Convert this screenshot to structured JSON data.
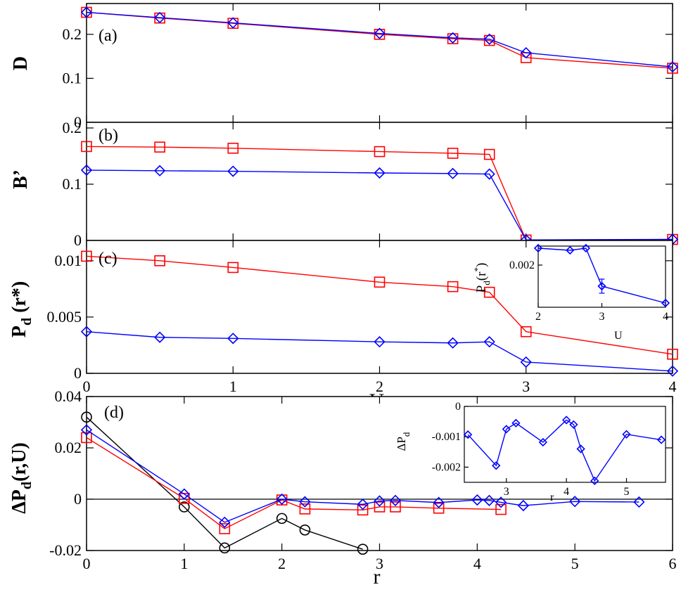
{
  "chart_data": [
    {
      "type": "line",
      "panel_label": "(a)",
      "xlabel": "",
      "ylabel": "D",
      "xlim": [
        0,
        4
      ],
      "ylim": [
        0,
        0.27
      ],
      "xticks": [
        0,
        1,
        2,
        3,
        4
      ],
      "yticks": [
        "0",
        "0.1",
        "0.2"
      ],
      "series": [
        {
          "color": "#ff0000",
          "marker": "square",
          "x": [
            0,
            0.5,
            1,
            2,
            2.5,
            2.75,
            3,
            4
          ],
          "y": [
            0.25,
            0.237,
            0.225,
            0.2,
            0.19,
            0.186,
            0.147,
            0.123
          ]
        },
        {
          "color": "#0000ff",
          "marker": "diamond",
          "x": [
            0,
            0.5,
            1,
            2,
            2.5,
            2.75,
            3,
            4
          ],
          "y": [
            0.25,
            0.238,
            0.226,
            0.202,
            0.192,
            0.189,
            0.158,
            0.126
          ]
        }
      ]
    },
    {
      "type": "line",
      "panel_label": "(b)",
      "xlabel": "",
      "ylabel": "B’",
      "xlim": [
        0,
        4
      ],
      "ylim": [
        0,
        0.21
      ],
      "xticks": [
        0,
        1,
        2,
        3,
        4
      ],
      "yticks": [
        "0",
        "0.1",
        "0.2"
      ],
      "series": [
        {
          "color": "#ff0000",
          "marker": "square",
          "x": [
            0,
            0.5,
            1,
            2,
            2.5,
            2.75,
            3,
            4
          ],
          "y": [
            0.167,
            0.166,
            0.164,
            0.158,
            0.155,
            0.153,
            0.0008,
            0.0018
          ]
        },
        {
          "color": "#0000ff",
          "marker": "diamond",
          "x": [
            0,
            0.5,
            1,
            2,
            2.5,
            2.75,
            3,
            4
          ],
          "y": [
            0.125,
            0.124,
            0.123,
            0.12,
            0.119,
            0.118,
            0.001,
            0.002
          ]
        }
      ]
    },
    {
      "type": "line",
      "panel_label": "(c)",
      "xlabel": "U",
      "ylabel": "P",
      "ylabel_sub": "d",
      "ylabel_rest": " (r*)",
      "xlim": [
        0,
        4
      ],
      "ylim": [
        0,
        0.0118
      ],
      "xticks": [
        0,
        1,
        2,
        3,
        4
      ],
      "yticks": [
        "0",
        "0.005",
        "0.01"
      ],
      "series": [
        {
          "color": "#ff0000",
          "marker": "square",
          "x": [
            0,
            0.5,
            1,
            2,
            2.5,
            2.75,
            3,
            4
          ],
          "y": [
            0.0104,
            0.01,
            0.0094,
            0.0081,
            0.0077,
            0.0072,
            0.0037,
            0.0017
          ]
        },
        {
          "color": "#0000ff",
          "marker": "diamond",
          "x": [
            0,
            0.5,
            1,
            2,
            2.5,
            2.75,
            3,
            4
          ],
          "y": [
            0.0037,
            0.0032,
            0.0031,
            0.0028,
            0.0027,
            0.0028,
            0.001,
            0.0002
          ]
        }
      ]
    },
    {
      "type": "line",
      "role": "inset",
      "inset_of": "(c)",
      "xlabel": "U",
      "ylabel": "P",
      "ylabel_sub": "d",
      "ylabel_rest": "(r",
      "ylabel_sup": "*",
      "ylabel_end": ")",
      "xlim": [
        2,
        4
      ],
      "ylim": [
        0,
        0.0029
      ],
      "xticks": [
        2,
        3,
        4
      ],
      "yticks": [
        "0.002"
      ],
      "series": [
        {
          "color": "#0000ff",
          "marker": "diamond",
          "x": [
            2,
            2.5,
            2.75,
            3,
            4
          ],
          "y": [
            0.0028,
            0.0027,
            0.0028,
            0.001,
            0.0002
          ],
          "errorbar_at": [
            3
          ]
        }
      ]
    },
    {
      "type": "line",
      "panel_label": "(d)",
      "xlabel": "r",
      "ylabel": "ΔP",
      "ylabel_sub": "d",
      "ylabel_rest": "(r,U)",
      "xlim": [
        0,
        6
      ],
      "ylim": [
        -0.02,
        0.04
      ],
      "xticks": [
        0,
        1,
        2,
        3,
        4,
        5,
        6
      ],
      "yticks": [
        "-0.02",
        "0",
        "0.02",
        "0.04"
      ],
      "zero_line": true,
      "series": [
        {
          "color": "#000000",
          "marker": "circle",
          "x": [
            0,
            1,
            1.414,
            2,
            2.236,
            2.828
          ],
          "y": [
            0.032,
            -0.003,
            -0.019,
            -0.0075,
            -0.012,
            -0.0195
          ]
        },
        {
          "color": "#ff0000",
          "marker": "square",
          "x": [
            0,
            1,
            1.414,
            2,
            2.236,
            2.828,
            3,
            3.162,
            3.606,
            4.243
          ],
          "y": [
            0.024,
            0.0003,
            -0.0115,
            -0.0003,
            -0.0038,
            -0.0042,
            -0.003,
            -0.003,
            -0.0035,
            -0.004
          ]
        },
        {
          "color": "#0000ff",
          "marker": "diamond",
          "x": [
            0,
            1,
            1.414,
            2,
            2.236,
            2.828,
            3,
            3.162,
            3.606,
            4,
            4.123,
            4.243,
            4.472,
            5,
            5.657
          ],
          "y": [
            0.027,
            0.002,
            -0.009,
            0,
            -0.001,
            -0.002,
            -0.0007,
            -0.0005,
            -0.0013,
            -0.0003,
            -0.0005,
            -0.0012,
            -0.0025,
            -0.0009,
            -0.0011
          ]
        }
      ]
    },
    {
      "type": "line",
      "role": "inset",
      "inset_of": "(d)",
      "xlabel": "r",
      "ylabel": "ΔP",
      "ylabel_sub": "d",
      "xlim": [
        2.3,
        5.65
      ],
      "ylim": [
        -0.0025,
        0
      ],
      "xticks": [
        3,
        4,
        5
      ],
      "yticks": [
        "-0.002",
        "-0.001",
        "0"
      ],
      "series": [
        {
          "color": "#0000ff",
          "marker": "diamond",
          "x": [
            2.36,
            2.83,
            3,
            3.16,
            3.61,
            4,
            4.12,
            4.24,
            4.47,
            5,
            5.58
          ],
          "y": [
            -0.00093,
            -0.00195,
            -0.00075,
            -0.00055,
            -0.00118,
            -0.00045,
            -0.0006,
            -0.0014,
            -0.00245,
            -0.00092,
            -0.0011
          ]
        }
      ]
    }
  ]
}
